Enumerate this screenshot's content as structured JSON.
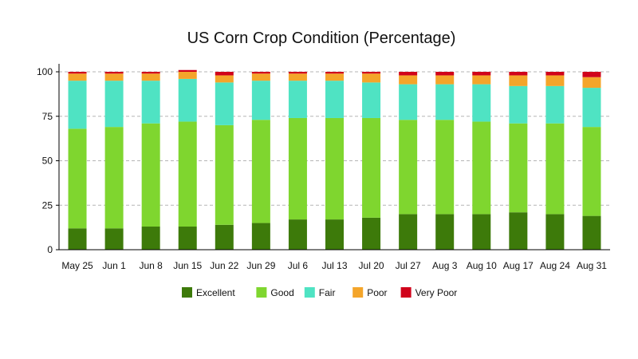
{
  "chart_data": {
    "type": "bar",
    "stacked": true,
    "title": "US Corn Crop Condition (Percentage)",
    "xlabel": "",
    "ylabel": "",
    "ylim": [
      0,
      100
    ],
    "yticks": [
      0,
      25,
      50,
      75,
      100
    ],
    "grid": "horizontal dashed",
    "legend_position": "bottom",
    "categories": [
      "May 25",
      "Jun 1",
      "Jun 8",
      "Jun 15",
      "Jun 22",
      "Jun 29",
      "Jul 6",
      "Jul 13",
      "Jul 20",
      "Jul 27",
      "Aug 3",
      "Aug 10",
      "Aug 17",
      "Aug 24",
      "Aug 31"
    ],
    "series": [
      {
        "name": "Excellent",
        "color": "#3d7a0a",
        "values": [
          12,
          12,
          13,
          13,
          14,
          15,
          17,
          17,
          18,
          20,
          20,
          20,
          21,
          20,
          19
        ]
      },
      {
        "name": "Good",
        "color": "#7fd62f",
        "values": [
          56,
          57,
          58,
          59,
          56,
          58,
          57,
          57,
          56,
          53,
          53,
          52,
          50,
          51,
          50
        ]
      },
      {
        "name": "Fair",
        "color": "#4fe3c3",
        "values": [
          27,
          26,
          24,
          24,
          24,
          22,
          21,
          21,
          20,
          20,
          20,
          21,
          21,
          21,
          22
        ]
      },
      {
        "name": "Poor",
        "color": "#f4a52a",
        "values": [
          4,
          4,
          4,
          4,
          4,
          4,
          4,
          4,
          5,
          5,
          5,
          5,
          6,
          6,
          6
        ]
      },
      {
        "name": "Very Poor",
        "color": "#d0021b",
        "values": [
          1,
          1,
          1,
          1,
          2,
          1,
          1,
          1,
          1,
          2,
          2,
          2,
          2,
          2,
          3
        ]
      }
    ]
  }
}
